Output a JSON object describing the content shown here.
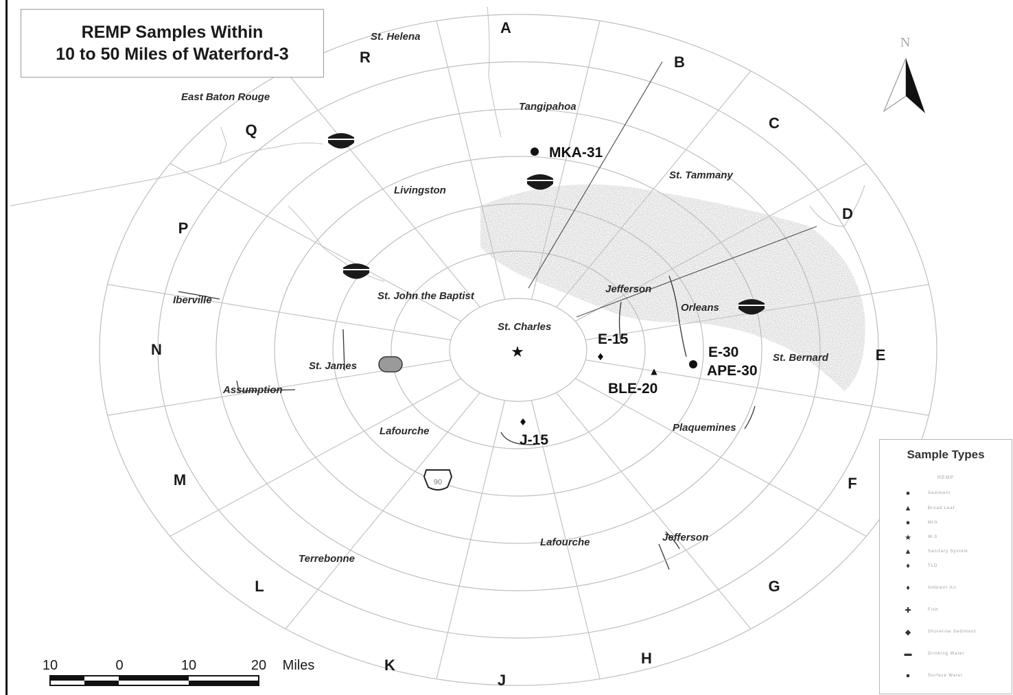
{
  "title": {
    "line1": "REMP Samples Within",
    "line2": "10  to 50 Miles of Waterford-3"
  },
  "compass": {
    "north_label": "N"
  },
  "sectors": [
    "A",
    "B",
    "C",
    "D",
    "E",
    "F",
    "G",
    "H",
    "J",
    "K",
    "L",
    "M",
    "N",
    "P",
    "Q",
    "R"
  ],
  "parishes": {
    "st_helena": "St. Helena",
    "east_baton_rouge": "East Baton Rouge",
    "tangipahoa": "Tangipahoa",
    "livingston": "Livingston",
    "st_tammany": "St. Tammany",
    "iberville": "Iberville",
    "st_john": "St. John the Baptist",
    "jefferson_n": "Jefferson",
    "orleans": "Orleans",
    "st_charles": "St. Charles",
    "st_james": "St. James",
    "st_bernard": "St. Bernard",
    "assumption": "Assumption",
    "lafourche_w": "Lafourche",
    "plaquemines": "Plaquemines",
    "lafourche_s": "Lafourche",
    "jefferson_s": "Jefferson",
    "terrebonne": "Terrebonne"
  },
  "stations": {
    "mka31": "MKA-31",
    "e15": "E-15",
    "e30": "E-30",
    "ape30": "APE-30",
    "ble20": "BLE-20",
    "j15": "J-15"
  },
  "highway_shield": "90",
  "scale_bar": {
    "t10a": "10",
    "t0": "0",
    "t10b": "10",
    "t20": "20",
    "unit": "Miles"
  },
  "legend": {
    "title": "Sample Types",
    "subtitle": "REMP",
    "items": [
      {
        "symbol": "●",
        "label": "Sediment"
      },
      {
        "symbol": "▲",
        "label": "Broad Leaf"
      },
      {
        "symbol": "●",
        "label": "Milk"
      },
      {
        "symbol": "★",
        "label": "W-3"
      },
      {
        "symbol": "▲",
        "label": "Sanitary System"
      },
      {
        "symbol": "♦",
        "label": "TLD"
      },
      {
        "symbol": "♦",
        "label": "Ambient Air"
      },
      {
        "symbol": "✚",
        "label": "Fish"
      },
      {
        "symbol": "◆",
        "label": "Shoreline Sediment"
      },
      {
        "symbol": "▬",
        "label": "Drinking Water"
      },
      {
        "symbol": "●",
        "label": "Surface Water"
      }
    ]
  }
}
